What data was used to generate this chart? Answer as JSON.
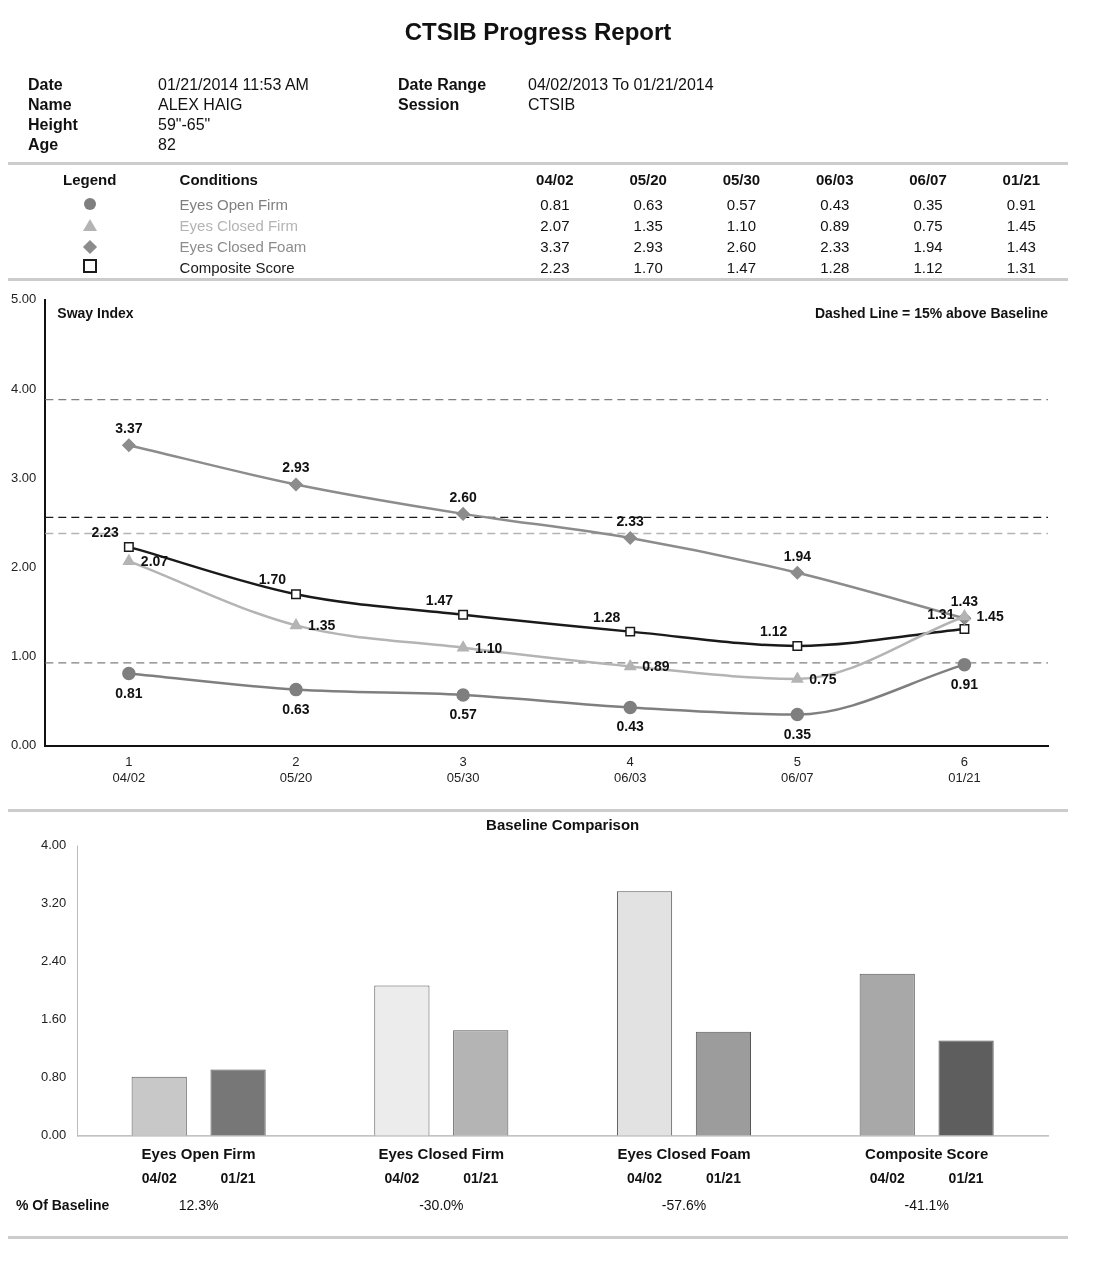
{
  "chart_data": [
    {
      "type": "line",
      "title": "CTSIB Progress Report",
      "subtitle": "Dashed Line = 15% above Baseline",
      "ylabel": "Sway Index",
      "legend_title": "Legend",
      "annotations": [
        "Date",
        "01/21/2014 11:53 AM",
        "Name",
        "ALEX HAIG",
        "Height",
        "59\"-65\"",
        "Age",
        "82",
        "Date Range",
        "04/02/2013 To 01/21/2014",
        "Session",
        "CTSIB",
        "Conditions",
        "04/02",
        "05/20",
        "05/30",
        "06/03",
        "06/07",
        "01/21"
      ],
      "categories": [
        "1\n04/02",
        "2\n05/20",
        "3\n05/30",
        "4\n06/03",
        "5\n06/07",
        "6\n01/21"
      ],
      "ylim": [
        0,
        5
      ],
      "yticks": [
        {
          "value": 0,
          "label": "0.00"
        },
        {
          "value": 1,
          "label": "1.00"
        },
        {
          "value": 2,
          "label": "2.00"
        },
        {
          "value": 3,
          "label": "3.00"
        },
        {
          "value": 4,
          "label": "4.00"
        },
        {
          "value": 5,
          "label": "5.00"
        }
      ],
      "series": [
        {
          "name": "Eyes Open Firm",
          "color": "#7f7f7f",
          "marker": "circle",
          "values": [
            0.81,
            0.63,
            0.57,
            0.43,
            0.35,
            0.91
          ],
          "value_labels": [
            "0.81",
            "0.63",
            "0.57",
            "0.43",
            "0.35",
            "0.91"
          ]
        },
        {
          "name": "Eyes Closed Firm",
          "color": "#b4b4b4",
          "marker": "triangle",
          "values": [
            2.07,
            1.35,
            1.1,
            0.89,
            0.75,
            1.45
          ],
          "value_labels": [
            "2.07",
            "1.35",
            "1.10",
            "0.89",
            "0.75",
            "1.45"
          ]
        },
        {
          "name": "Eyes Closed Foam",
          "color": "#8c8c8c",
          "marker": "diamond",
          "values": [
            3.37,
            2.93,
            2.6,
            2.33,
            1.94,
            1.43
          ],
          "value_labels": [
            "3.37",
            "2.93",
            "2.60",
            "2.33",
            "1.94",
            "1.43"
          ]
        },
        {
          "name": "Composite Score",
          "color": "#1a1a1a",
          "marker": "square",
          "values": [
            2.23,
            1.7,
            1.47,
            1.28,
            1.12,
            1.31
          ],
          "value_labels": [
            "2.23",
            "1.70",
            "1.47",
            "1.28",
            "1.12",
            "1.31"
          ]
        }
      ],
      "ref_lines": [
        {
          "axis": "y",
          "value": 3.88,
          "color": "#7f7f7f",
          "line_style": "dashed"
        },
        {
          "axis": "y",
          "value": 2.56,
          "color": "#1a1a1a",
          "line_style": "dashed"
        },
        {
          "axis": "y",
          "value": 2.38,
          "color": "#b4b4b4",
          "line_style": "dashed"
        },
        {
          "axis": "y",
          "value": 0.93,
          "color": "#7f7f7f",
          "line_style": "dashed"
        }
      ],
      "legend": "top",
      "grid": false,
      "line_style": "solid"
    },
    {
      "type": "bar",
      "title": "Baseline Comparison",
      "categories": [
        "Eyes Open Firm",
        "Eyes Closed Firm",
        "Eyes Closed Foam",
        "Composite Score"
      ],
      "ylim": [
        0,
        4
      ],
      "yticks": [
        {
          "value": 0,
          "label": "0.00"
        },
        {
          "value": 0.8,
          "label": "0.80"
        },
        {
          "value": 1.6,
          "label": "1.60"
        },
        {
          "value": 2.4,
          "label": "2.40"
        },
        {
          "value": 3.2,
          "label": "3.20"
        },
        {
          "value": 4,
          "label": "4.00"
        }
      ],
      "series": [
        {
          "name": "04/02",
          "colors": [
            "#c8c8c8",
            "#ececec",
            "#e2e2e2",
            "#a8a8a8"
          ],
          "values": [
            0.81,
            2.07,
            3.37,
            2.23
          ]
        },
        {
          "name": "01/21",
          "colors": [
            "#777777",
            "#b4b4b4",
            "#9c9c9c",
            "#5e5e5e"
          ],
          "values": [
            0.91,
            1.45,
            1.43,
            1.31
          ]
        }
      ],
      "annotations": [
        "% Of Baseline",
        "12.3%",
        "-30.0%",
        "-57.6%",
        "-41.1%"
      ],
      "legend": false,
      "grid": false
    }
  ]
}
